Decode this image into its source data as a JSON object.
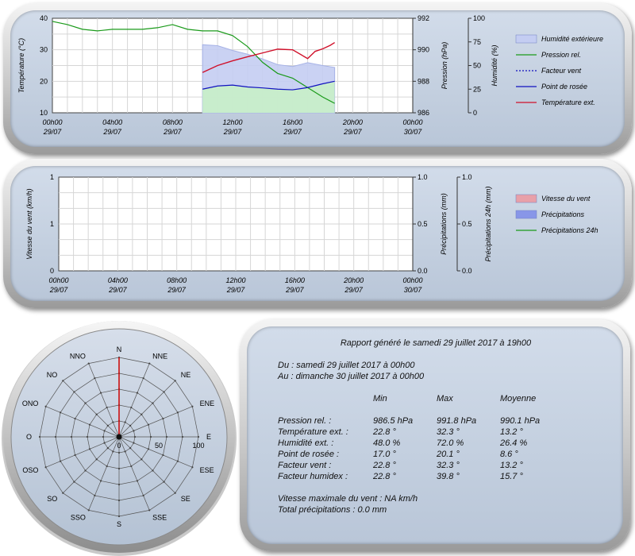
{
  "chart_data": [
    {
      "type": "line",
      "x_ticks": [
        "00h00\n29/07",
        "04h00\n29/07",
        "08h00\n29/07",
        "12h00\n29/07",
        "16h00\n29/07",
        "20h00\n29/07",
        "00h00\n30/07"
      ],
      "ylabel_left": "Température (°C)",
      "ylabel_right1": "Pression (hPa)",
      "ylabel_right2": "Humidité (%)",
      "ylim_left": [
        10,
        40
      ],
      "ylim_right1": [
        986,
        992
      ],
      "ylim_right2": [
        0,
        100
      ],
      "yticks_left": [
        "40",
        "30",
        "20",
        "10"
      ],
      "yticks_right1": [
        "992",
        "990",
        "988",
        "986"
      ],
      "yticks_right2": [
        "100",
        "75",
        "50",
        "25",
        "0"
      ],
      "legend": [
        "Humidité extérieure",
        "Pression rel.",
        "Facteur vent",
        "Point de rosée",
        "Température ext."
      ],
      "legend_colors": [
        "#c4cdf2",
        "#1a9a1a",
        "#1010c0",
        "#1010c0",
        "#d0102a"
      ],
      "series": [
        {
          "name": "Humidité extérieure",
          "axis": "right2",
          "x": [
            10,
            11,
            12,
            13,
            14,
            15,
            16,
            17,
            18,
            18.8
          ],
          "values": [
            72,
            71,
            66,
            62,
            57,
            51,
            49,
            53,
            50,
            48
          ]
        },
        {
          "name": "Pression rel.",
          "axis": "right1",
          "x": [
            0,
            1,
            2,
            3,
            4,
            5,
            6,
            7,
            8,
            9,
            10,
            11,
            12,
            13,
            14,
            15,
            16,
            17,
            18,
            18.8
          ],
          "values": [
            991.8,
            991.6,
            991.3,
            991.2,
            991.3,
            991.3,
            991.3,
            991.4,
            991.6,
            991.3,
            991.2,
            991.2,
            990.9,
            990.2,
            989.2,
            988.5,
            988.2,
            987.6,
            987.0,
            986.6
          ]
        },
        {
          "name": "Point de rosée",
          "axis": "left",
          "x": [
            10,
            11,
            12,
            13,
            14,
            15,
            16,
            17,
            18,
            18.8
          ],
          "values": [
            17.5,
            18.5,
            18.8,
            18.2,
            17.9,
            17.5,
            17.3,
            18.0,
            19.2,
            20.0
          ]
        },
        {
          "name": "Température ext.",
          "axis": "left",
          "x": [
            10,
            11,
            12,
            13,
            14,
            15,
            16,
            17,
            17.5,
            18,
            18.5,
            18.8
          ],
          "values": [
            22.8,
            25.0,
            26.5,
            27.8,
            29.0,
            30.2,
            30.0,
            27.2,
            29.5,
            30.3,
            31.4,
            32.3
          ]
        }
      ]
    },
    {
      "type": "line",
      "x_ticks": [
        "00h00\n29/07",
        "04h00\n29/07",
        "08h00\n29/07",
        "12h00\n29/07",
        "16h00\n29/07",
        "20h00\n29/07",
        "00h00\n30/07"
      ],
      "ylabel_left": "Vitesse du vent (km/h)",
      "ylabel_right1": "Précipitations (mm)",
      "ylabel_right2": "Précipitations 24h (mm)",
      "yticks_left": [
        "1",
        "1",
        "0"
      ],
      "yticks_right1": [
        "1.0",
        "0.5",
        "0.0"
      ],
      "yticks_right2": [
        "1.0",
        "0.5",
        "0.0"
      ],
      "legend": [
        "Vitesse du vent",
        "Précipitations",
        "Précipitations 24h"
      ],
      "legend_colors": [
        "#e8a0a8",
        "#8896e8",
        "#1a9a1a"
      ],
      "series": []
    },
    {
      "type": "polar",
      "directions": [
        "N",
        "NNE",
        "NE",
        "ENE",
        "E",
        "ESE",
        "SE",
        "SSE",
        "S",
        "SSO",
        "SO",
        "OSO",
        "O",
        "ONO",
        "NO",
        "NNO"
      ],
      "rings": [
        "0",
        "50",
        "100"
      ],
      "values": [
        100,
        0,
        0,
        0,
        0,
        0,
        0,
        0,
        0,
        0,
        0,
        0,
        0,
        0,
        0,
        0
      ]
    }
  ],
  "report": {
    "title": "Rapport généré le samedi 29 juillet 2017 à 19h00",
    "from": "Du : samedi 29 juillet 2017 à 00h00",
    "to": "Au : dimanche 30 juillet 2017 à 00h00",
    "headers": [
      "Min",
      "Max",
      "Moyenne"
    ],
    "rows": [
      {
        "label": "Pression rel. :",
        "min": "986.5 hPa",
        "max": "991.8 hPa",
        "avg": "990.1 hPa"
      },
      {
        "label": "Température ext. :",
        "min": "22.8 °",
        "max": "32.3 °",
        "avg": "13.2 °"
      },
      {
        "label": "Humidité ext. :",
        "min": "48.0 %",
        "max": "72.0 %",
        "avg": "26.4 %"
      },
      {
        "label": "Point de rosée :",
        "min": "17.0 °",
        "max": "20.1 °",
        "avg": "8.6 °"
      },
      {
        "label": "Facteur vent :",
        "min": "22.8 °",
        "max": "32.3 °",
        "avg": "13.2 °"
      },
      {
        "label": "Facteur humidex :",
        "min": "22.8 °",
        "max": "39.8 °",
        "avg": "15.7 °"
      }
    ],
    "wind_max": "Vitesse maximale du vent : NA km/h",
    "precip_total": "Total précipitations : 0.0 mm"
  }
}
